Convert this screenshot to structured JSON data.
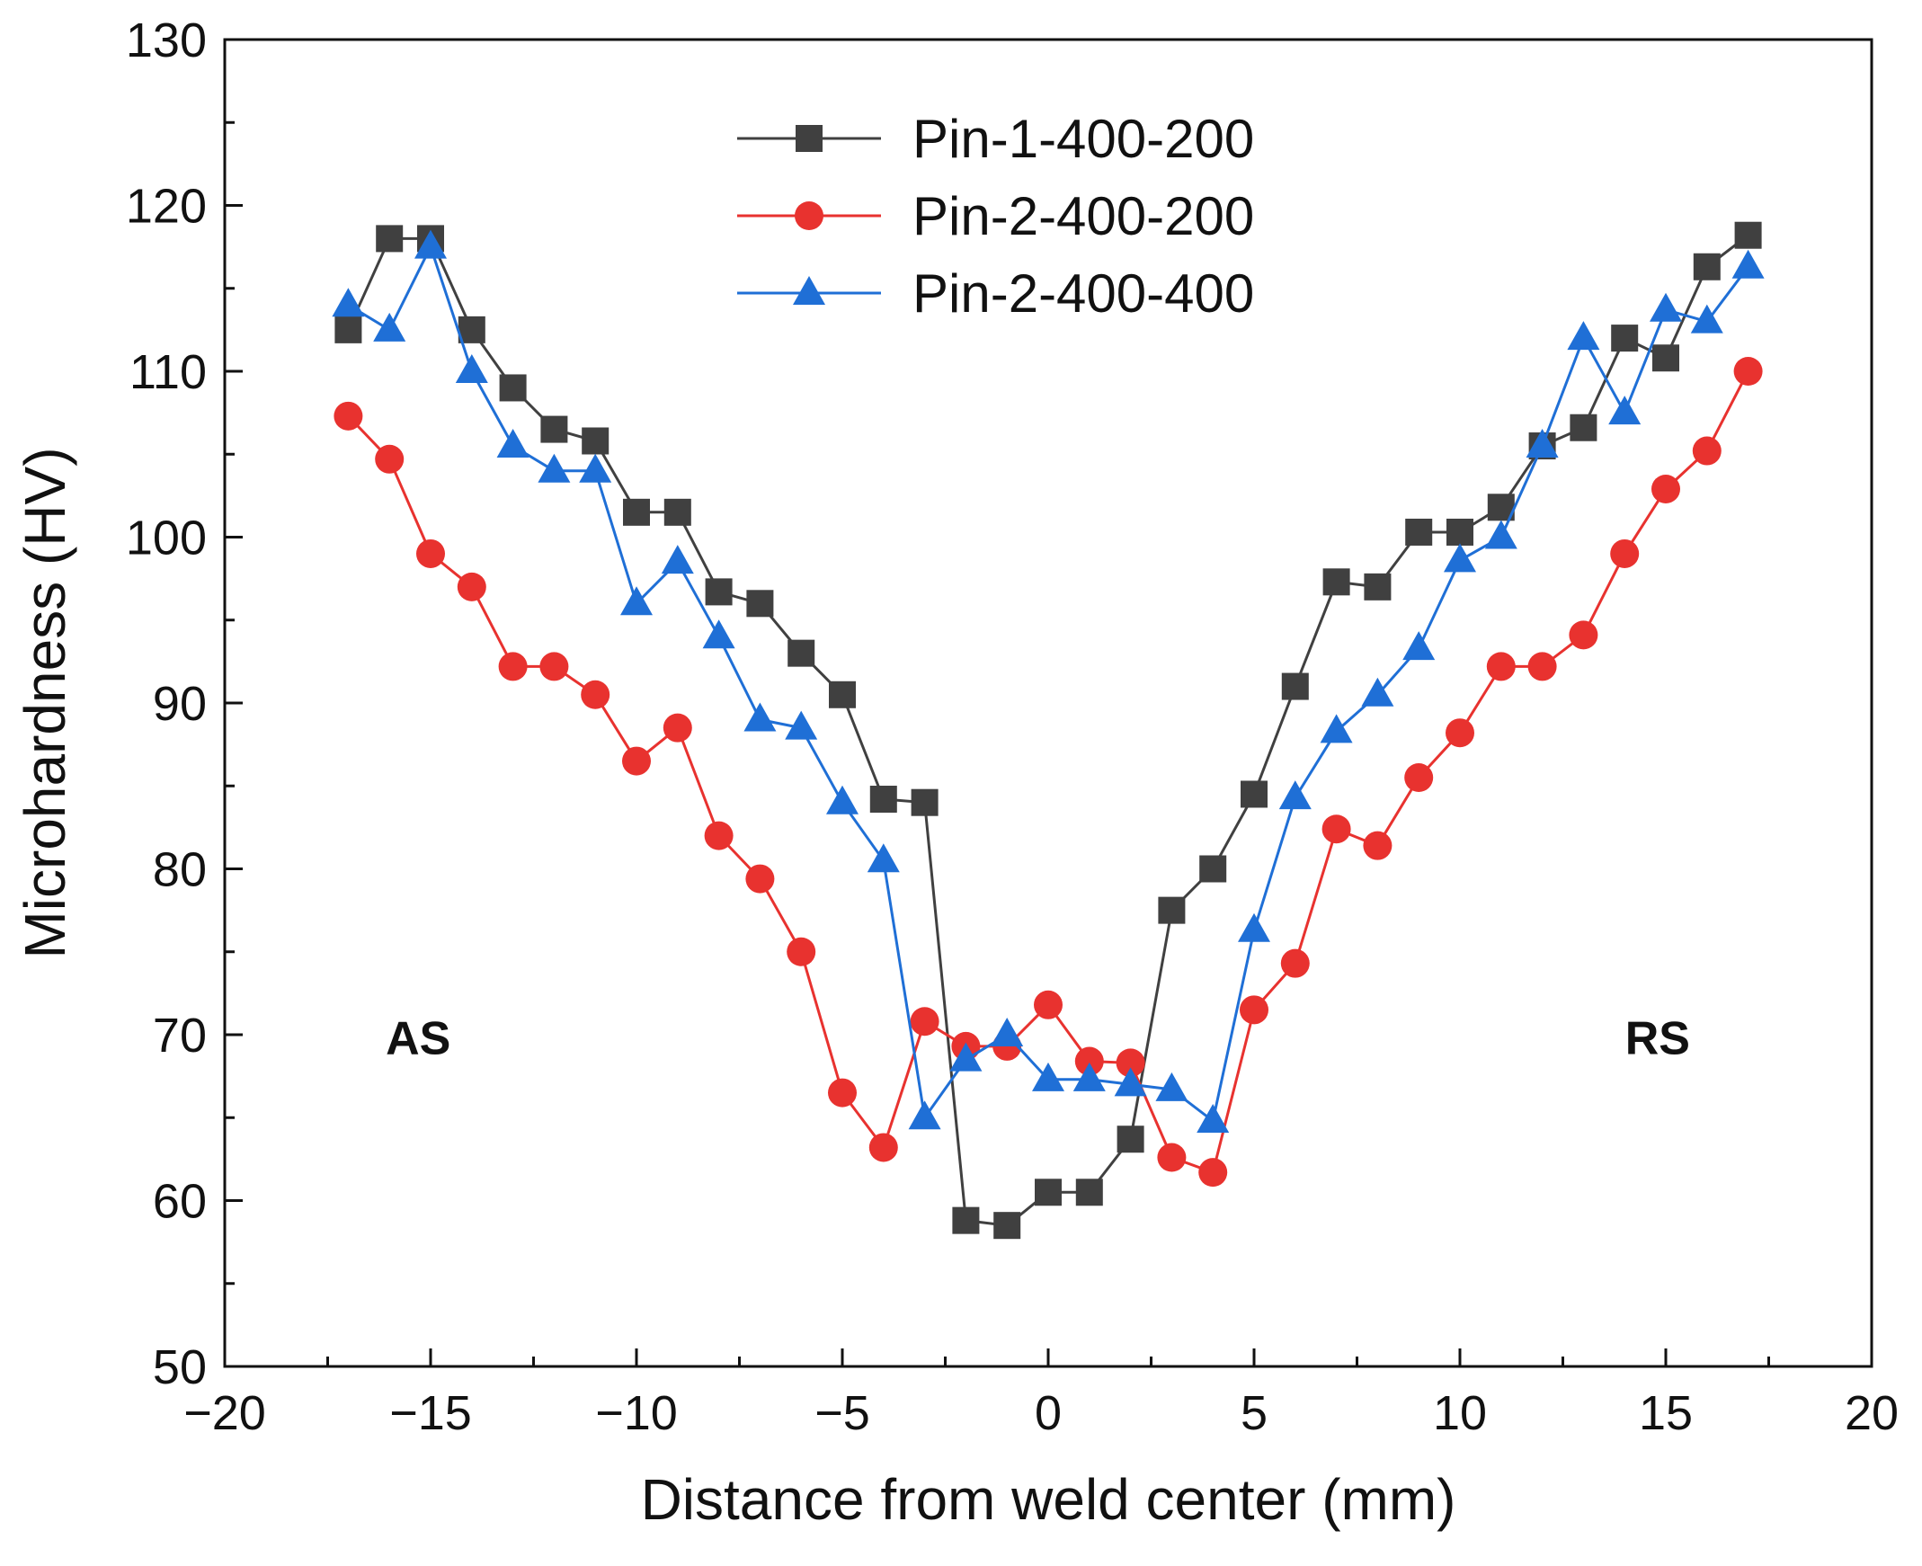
{
  "chart_data": {
    "type": "line",
    "title": "",
    "xlabel": "Distance from weld center (mm)",
    "ylabel": "Microhardness (HV)",
    "xlim": [
      -20,
      20
    ],
    "ylim": [
      50,
      130
    ],
    "xticks": [
      -20,
      -15,
      -10,
      -5,
      0,
      5,
      10,
      15,
      20
    ],
    "xtick_labels": [
      "−20",
      "−15",
      "−10",
      "−5",
      "0",
      "5",
      "10",
      "15",
      "20"
    ],
    "yticks": [
      50,
      60,
      70,
      80,
      90,
      100,
      110,
      120,
      130
    ],
    "ytick_labels": [
      "50",
      "60",
      "70",
      "80",
      "90",
      "100",
      "110",
      "120",
      "130"
    ],
    "grid": false,
    "legend_position": "top-center",
    "annotations": [
      {
        "text": "AS",
        "x": -15.3,
        "y": 69.8
      },
      {
        "text": "RS",
        "x": 14.8,
        "y": 69.8
      }
    ],
    "series": [
      {
        "name": "Pin-1-400-200",
        "color": "#404040",
        "marker": "square",
        "x": [
          -17,
          -16,
          -15,
          -14,
          -13,
          -12,
          -11,
          -10,
          -9,
          -8,
          -7,
          -6,
          -5,
          -4,
          -3,
          -2,
          -1,
          0,
          1,
          2,
          3,
          4,
          5,
          6,
          7,
          8,
          9,
          10,
          11,
          12,
          13,
          14,
          15,
          16,
          17
        ],
        "y": [
          112.5,
          118,
          118,
          112.5,
          109,
          106.5,
          105.8,
          101.5,
          101.5,
          96.7,
          96,
          93,
          90.5,
          84.2,
          84,
          58.8,
          58.5,
          60.5,
          60.5,
          63.7,
          77.5,
          80,
          84.5,
          91,
          97.3,
          97,
          100.3,
          100.3,
          101.8,
          105.5,
          106.6,
          112,
          110.8,
          116.3,
          118.2
        ]
      },
      {
        "name": "Pin-2-400-200",
        "color": "#e8322f",
        "marker": "circle",
        "x": [
          -17,
          -16,
          -15,
          -14,
          -13,
          -12,
          -11,
          -10,
          -9,
          -8,
          -7,
          -6,
          -5,
          -4,
          -3,
          -2,
          -1,
          0,
          1,
          2,
          3,
          4,
          5,
          6,
          7,
          8,
          9,
          10,
          11,
          12,
          13,
          14,
          15,
          16,
          17
        ],
        "y": [
          107.3,
          104.7,
          99,
          97,
          92.2,
          92.2,
          90.5,
          86.5,
          88.5,
          82,
          79.4,
          75,
          66.5,
          63.2,
          70.8,
          69.3,
          69.3,
          71.8,
          68.4,
          68.3,
          62.6,
          61.7,
          71.5,
          74.3,
          82.4,
          81.4,
          85.5,
          88.2,
          92.2,
          92.2,
          94.1,
          99,
          102.9,
          105.2,
          110
        ]
      },
      {
        "name": "Pin-2-400-400",
        "color": "#1f6fd6",
        "marker": "triangle",
        "x": [
          -17,
          -16,
          -15,
          -14,
          -13,
          -12,
          -11,
          -10,
          -9,
          -8,
          -7,
          -6,
          -5,
          -4,
          -3,
          -2,
          -1,
          0,
          1,
          2,
          3,
          4,
          5,
          6,
          7,
          8,
          9,
          10,
          11,
          12,
          13,
          14,
          15,
          16,
          17
        ],
        "y": [
          114,
          112.5,
          117.5,
          110,
          105.5,
          104,
          104,
          96,
          98.5,
          94,
          89,
          88.5,
          84,
          80.5,
          65,
          68.5,
          70,
          67.3,
          67.3,
          67,
          66.7,
          64.8,
          76.3,
          84.3,
          88.3,
          90.5,
          93.3,
          98.6,
          100,
          105.5,
          112,
          107.5,
          113.7,
          113,
          116.3
        ]
      }
    ]
  }
}
